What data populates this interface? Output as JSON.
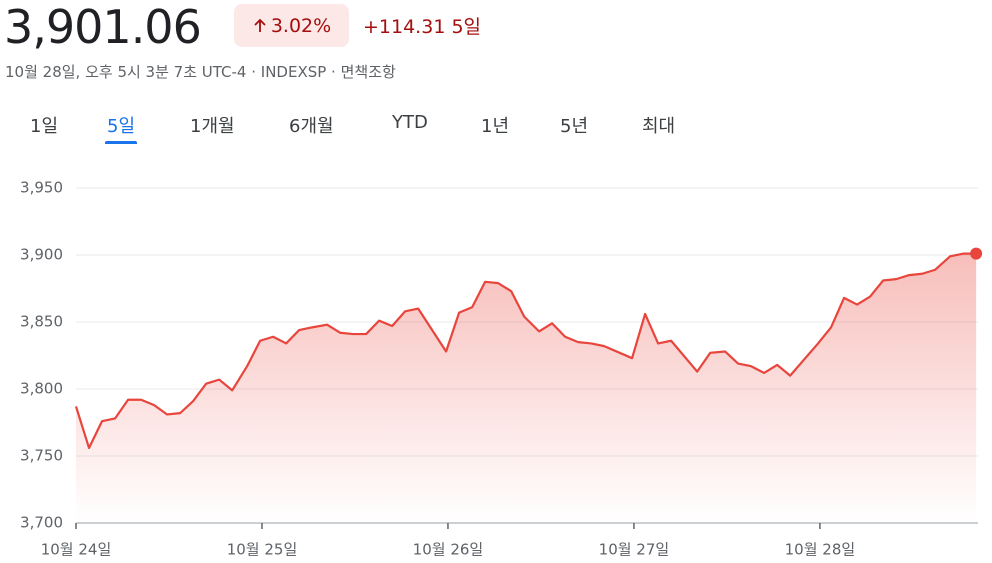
{
  "header": {
    "price": "3,901.06",
    "change_percent": "3.02%",
    "change": "+114.31",
    "period": "5일",
    "subtitle": "10월 28일, 오후 5시 3분 7초 UTC-4 · INDEXSP · 면책조항"
  },
  "tabs": [
    "1일",
    "5일",
    "1개월",
    "6개월",
    "YTD",
    "1년",
    "5년",
    "최대"
  ],
  "chart_data": {
    "type": "line",
    "color": "#e8453c",
    "grid": true,
    "x": [
      0,
      0.07,
      0.14,
      0.21,
      0.28,
      0.35,
      0.42,
      0.49,
      0.56,
      0.63,
      0.7,
      0.77,
      0.84,
      0.92,
      0.99,
      1.06,
      1.13,
      1.2,
      1.27,
      1.35,
      1.42,
      1.49,
      1.56,
      1.63,
      1.7,
      1.77,
      1.84,
      1.99,
      2.06,
      2.13,
      2.2,
      2.27,
      2.34,
      2.41,
      2.49,
      2.56,
      2.63,
      2.7,
      2.77,
      2.84,
      2.99,
      3.06,
      3.13,
      3.2,
      3.34,
      3.41,
      3.49,
      3.56,
      3.63,
      3.7,
      3.77,
      3.84,
      3.99,
      4.06,
      4.13,
      4.2,
      4.27,
      4.34,
      4.41,
      4.48,
      4.55,
      4.62,
      4.7,
      4.77,
      4.84
    ],
    "values": [
      3787,
      3756,
      3776,
      3778,
      3792,
      3792,
      3788,
      3781,
      3782,
      3791,
      3804,
      3807,
      3799,
      3817,
      3836,
      3839,
      3834,
      3844,
      3846,
      3848,
      3842,
      3841,
      3841,
      3851,
      3847,
      3858,
      3860,
      3828,
      3857,
      3861,
      3880,
      3879,
      3873,
      3854,
      3843,
      3849,
      3839,
      3835,
      3834,
      3832,
      3823,
      3856,
      3834,
      3836,
      3813,
      3827,
      3828,
      3819,
      3817,
      3812,
      3818,
      3810,
      3834,
      3846,
      3868,
      3863,
      3869,
      3881,
      3882,
      3885,
      3886,
      3889,
      3899,
      3901,
      3901.06
    ],
    "xlim": [
      0,
      4.85
    ],
    "xticks": [
      {
        "value": 0,
        "label": "10월 24일"
      },
      {
        "value": 1,
        "label": "10월 25일"
      },
      {
        "value": 2,
        "label": "10월 26일"
      },
      {
        "value": 3,
        "label": "10월 27일"
      },
      {
        "value": 4,
        "label": "10월 28일"
      }
    ],
    "ylim": [
      3700,
      3950
    ],
    "yticks": [
      {
        "value": 3700,
        "label": "3,700"
      },
      {
        "value": 3750,
        "label": "3,750"
      },
      {
        "value": 3800,
        "label": "3,800"
      },
      {
        "value": 3850,
        "label": "3,850"
      },
      {
        "value": 3900,
        "label": "3,900"
      },
      {
        "value": 3950,
        "label": "3,950"
      }
    ]
  }
}
